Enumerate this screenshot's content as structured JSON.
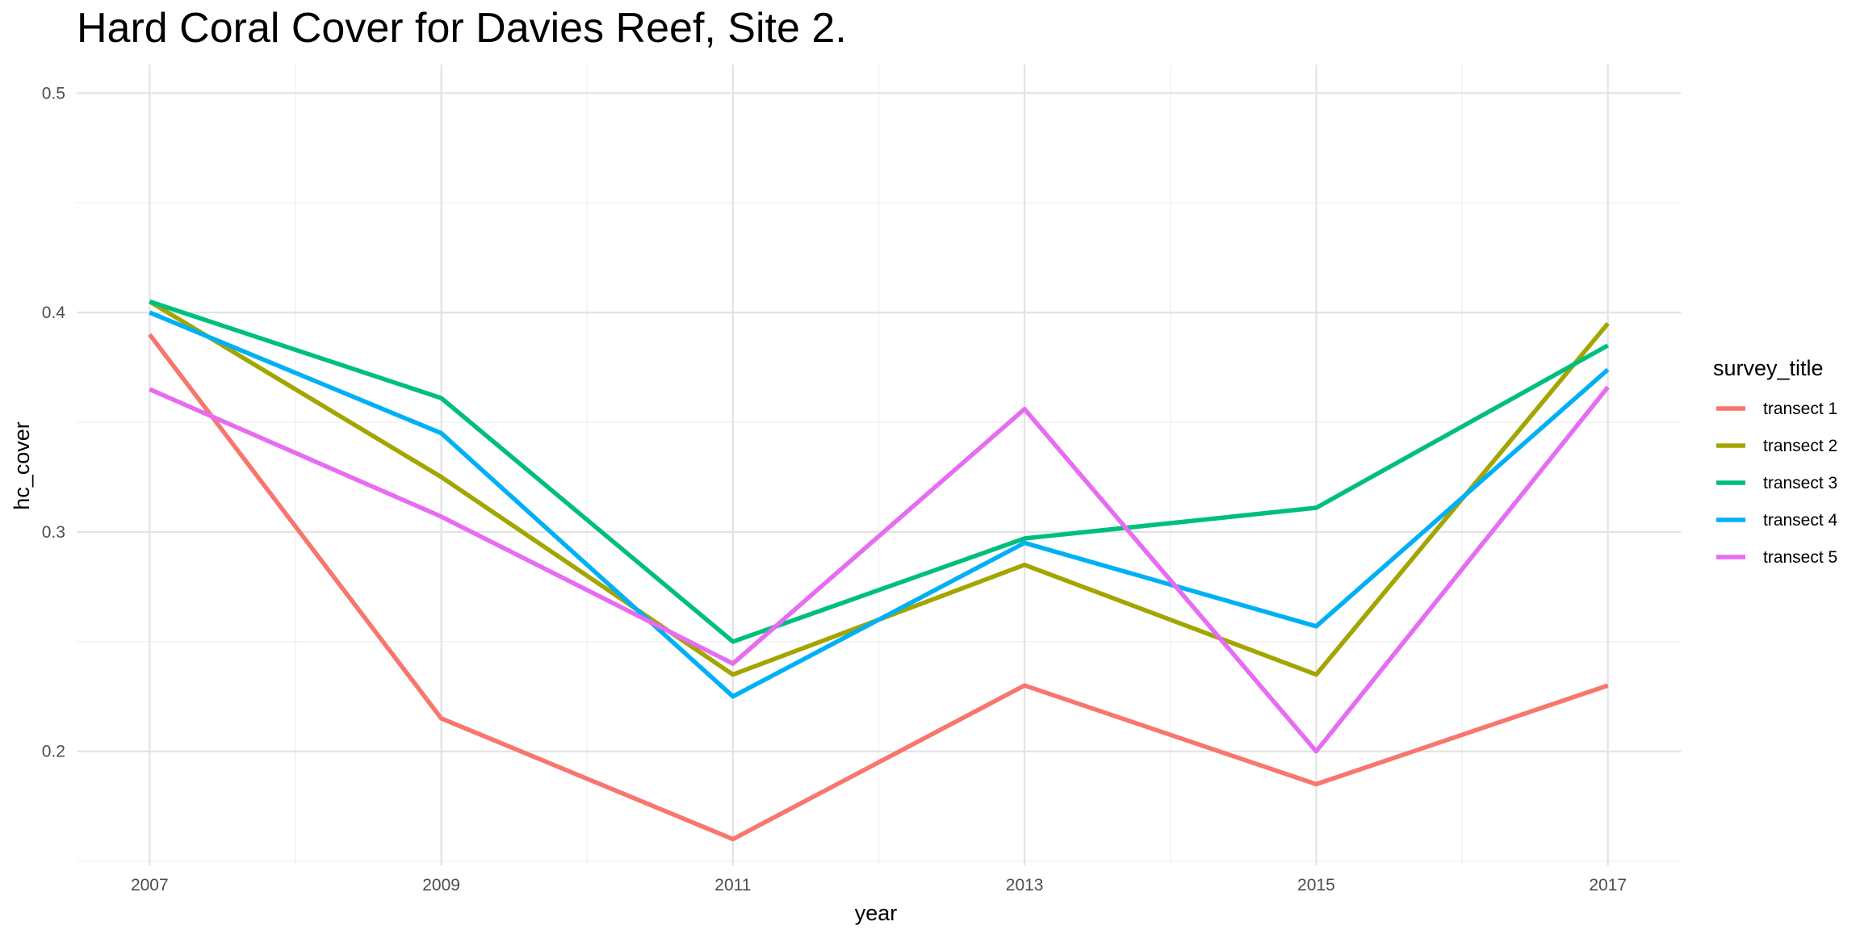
{
  "chart_data": {
    "type": "line",
    "title": "Hard Coral Cover for Davies Reef, Site 2.",
    "xlabel": "year",
    "ylabel": "hc_cover",
    "x": [
      2007,
      2009,
      2011,
      2013,
      2015,
      2017
    ],
    "xlim": [
      2006.5,
      2017.5
    ],
    "ylim": [
      0.148,
      0.513
    ],
    "x_ticks": [
      "2007",
      "2009",
      "2011",
      "2013",
      "2015",
      "2017"
    ],
    "y_ticks": [
      "0.2",
      "0.3",
      "0.4",
      "0.5"
    ],
    "grid": true,
    "legend": {
      "title": "survey_title",
      "position": "right"
    },
    "series": [
      {
        "name": "transect 1",
        "color": "#F8766D",
        "values": [
          0.39,
          0.215,
          0.16,
          0.23,
          0.185,
          0.23
        ]
      },
      {
        "name": "transect 2",
        "color": "#A3A500",
        "values": [
          0.405,
          0.325,
          0.235,
          0.285,
          0.235,
          0.395
        ]
      },
      {
        "name": "transect 3",
        "color": "#00BF7D",
        "values": [
          0.405,
          0.361,
          0.25,
          0.297,
          0.311,
          0.385
        ]
      },
      {
        "name": "transect 4",
        "color": "#00B0F6",
        "values": [
          0.4,
          0.345,
          0.225,
          0.295,
          0.257,
          0.374
        ]
      },
      {
        "name": "transect 5",
        "color": "#E76BF3",
        "values": [
          0.365,
          0.307,
          0.24,
          0.356,
          0.2,
          0.366
        ]
      }
    ]
  }
}
